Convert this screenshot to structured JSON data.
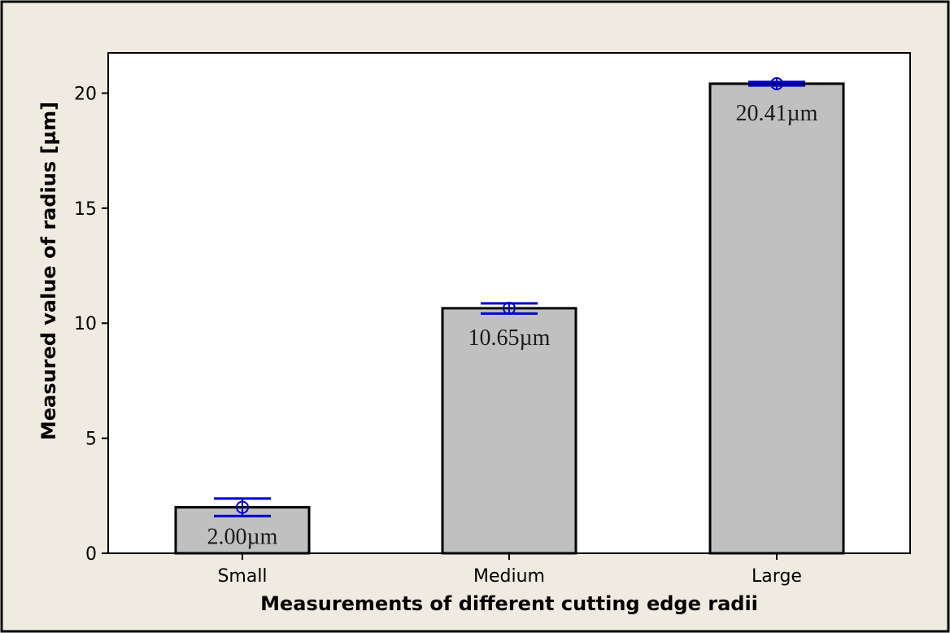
{
  "chart_data": {
    "type": "bar",
    "categories": [
      "Small",
      "Medium",
      "Large"
    ],
    "values": [
      2.0,
      10.65,
      20.41
    ],
    "error_bars": [
      {
        "mean": 2.0,
        "low": 1.62,
        "high": 2.38
      },
      {
        "mean": 10.65,
        "low": 10.42,
        "high": 10.86
      },
      {
        "mean": 20.41,
        "low": 20.33,
        "high": 20.49
      }
    ],
    "data_labels": [
      "2.00µm",
      "10.65µm",
      "20.41µm"
    ],
    "xlabel": "Measurements of different cutting edge radii",
    "ylabel": "Measured value of radius [µm]",
    "ylim": [
      0,
      21.75
    ],
    "yticks": [
      0,
      5,
      10,
      15,
      20
    ],
    "grid": false,
    "legend": "none",
    "colors": {
      "bar_fill": "#c0c0c0",
      "bar_stroke": "#000000",
      "error_bar": "#0000cc",
      "outer_background": "#f0ebe0",
      "plot_background": "#ffffff"
    }
  }
}
